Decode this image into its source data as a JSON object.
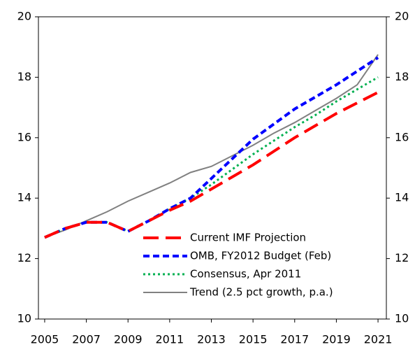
{
  "chart_data": {
    "type": "line",
    "x": [
      2005,
      2006,
      2007,
      2008,
      2009,
      2010,
      2011,
      2012,
      2013,
      2014,
      2015,
      2016,
      2017,
      2018,
      2019,
      2020,
      2021
    ],
    "series": [
      {
        "name": "Current IMF Projection",
        "color": "#ff0000",
        "dash": "22,10",
        "width": 4,
        "values": [
          12.7,
          13.0,
          13.2,
          13.2,
          12.9,
          13.25,
          13.6,
          13.9,
          14.3,
          14.7,
          15.1,
          15.55,
          16.0,
          16.4,
          16.8,
          17.15,
          17.5
        ]
      },
      {
        "name": "OMB, FY2012 Budget (Feb)",
        "color": "#0000ff",
        "dash": "9,5",
        "width": 4,
        "values": [
          12.7,
          13.0,
          13.2,
          13.2,
          12.9,
          13.25,
          13.65,
          14.0,
          14.65,
          15.3,
          15.95,
          16.45,
          16.95,
          17.35,
          17.75,
          18.2,
          18.65
        ]
      },
      {
        "name": "Consensus, Apr 2011",
        "color": "#00b050",
        "dash": "3,4",
        "width": 3,
        "values": [
          12.7,
          13.0,
          13.2,
          13.2,
          12.9,
          13.25,
          13.65,
          14.0,
          14.45,
          14.95,
          15.45,
          15.9,
          16.35,
          16.75,
          17.2,
          17.6,
          18.0
        ]
      },
      {
        "name": "Trend (2.5 pct growth, p.a.)",
        "color": "#808080",
        "dash": "none",
        "width": 2,
        "values": [
          12.7,
          12.95,
          13.25,
          13.55,
          13.9,
          14.2,
          14.5,
          14.85,
          15.05,
          15.4,
          15.75,
          16.15,
          16.5,
          16.9,
          17.3,
          17.75,
          18.75
        ]
      }
    ],
    "xlim": [
      2004.7,
      2021.4
    ],
    "xticks": [
      2005,
      2007,
      2009,
      2011,
      2013,
      2015,
      2017,
      2019,
      2021
    ],
    "ylim": [
      10,
      20
    ],
    "yticks": [
      10,
      12,
      14,
      16,
      18,
      20
    ],
    "y2lim": [
      10,
      20
    ],
    "y2ticks": [
      10,
      12,
      14,
      16,
      18,
      20
    ],
    "legend": "lower right"
  }
}
